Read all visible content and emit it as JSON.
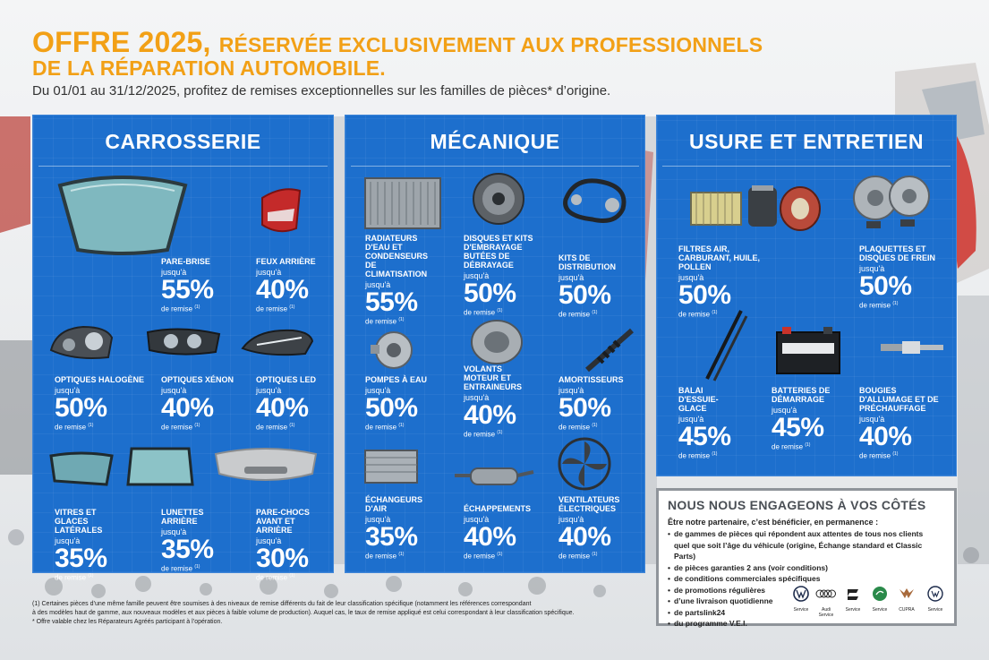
{
  "header": {
    "title_big": "OFFRE 2025,",
    "title_rest": "RÉSERVÉE EXCLUSIVEMENT AUX PROFESSIONNELS",
    "title_line2": "DE LA RÉPARATION AUTOMOBILE.",
    "subtitle": "Du 01/01 au 31/12/2025, profitez de remises exceptionnelles sur les familles de pièces* d’origine."
  },
  "labels": {
    "upto": "jusqu'à",
    "remise": "de remise",
    "note_mark": "(1)"
  },
  "panels": {
    "carrosserie": {
      "title": "CARROSSERIE",
      "items": [
        {
          "name": "PARE-BRISE",
          "pct": "55%"
        },
        {
          "name": "FEUX ARRIÈRE",
          "pct": "40%"
        },
        {
          "name": "OPTIQUES HALOGÈNE",
          "pct": "50%"
        },
        {
          "name": "OPTIQUES XÉNON",
          "pct": "40%"
        },
        {
          "name": "OPTIQUES LED",
          "pct": "40%"
        },
        {
          "name": "VITRES ET GLACES LATÉRALES",
          "pct": "35%"
        },
        {
          "name": "LUNETTES ARRIÈRE",
          "pct": "35%"
        },
        {
          "name": "PARE-CHOCS AVANT ET ARRIÈRE",
          "pct": "30%"
        }
      ]
    },
    "mecanique": {
      "title": "MÉCANIQUE",
      "items": [
        {
          "name": "RADIATEURS D'EAU ET CONDENSEURS DE CLIMATISATION",
          "pct": "55%"
        },
        {
          "name": "DISQUES ET KITS D'EMBRAYAGE BUTÉES DE DÉBRAYAGE",
          "pct": "50%"
        },
        {
          "name": "KITS DE DISTRIBUTION",
          "pct": "50%"
        },
        {
          "name": "POMPES À EAU",
          "pct": "50%"
        },
        {
          "name": "VOLANTS MOTEUR ET ENTRAINEURS",
          "pct": "40%"
        },
        {
          "name": "AMORTISSEURS",
          "pct": "50%"
        },
        {
          "name": "ÉCHANGEURS D'AIR",
          "pct": "35%"
        },
        {
          "name": "ÉCHAPPEMENTS",
          "pct": "40%"
        },
        {
          "name": "VENTILATEURS ÉLECTRIQUES",
          "pct": "40%"
        }
      ]
    },
    "usure": {
      "title": "USURE ET ENTRETIEN",
      "items": [
        {
          "name": "FILTRES AIR, CARBURANT, HUILE, POLLEN",
          "pct": "50%"
        },
        {
          "name": "PLAQUETTES ET DISQUES DE FREIN",
          "pct": "50%"
        },
        {
          "name": "BALAI D'ESSUIE-GLACE",
          "pct": "45%"
        },
        {
          "name": "BATTERIES DE DÉMARRAGE",
          "pct": "45%"
        },
        {
          "name": "BOUGIES D'ALLUMAGE ET DE PRÉCHAUFFAGE",
          "pct": "40%"
        }
      ]
    }
  },
  "engage": {
    "title": "NOUS NOUS ENGAGEONS À VOS CÔTÉS",
    "lead": "Être notre partenaire, c’est bénéficier, en permanence :",
    "bullets": [
      "de gammes de pièces qui répondent aux attentes de tous nos clients",
      "quel que soit l’âge du véhicule (origine, Échange standard et Classic Parts)",
      "de pièces garanties 2 ans (voir conditions)",
      "de conditions commerciales spécifiques",
      "de promotions régulières",
      "d’une livraison quotidienne",
      "de partslink24",
      "du programme V.E.I."
    ]
  },
  "brands": {
    "vw": "Service",
    "audi": "Audi Service",
    "seat": "Service",
    "skoda": "Service",
    "cupra": "CUPRA",
    "vwu": "Service"
  },
  "footnote": {
    "line1": "(1) Certaines pièces d’une même famille peuvent être soumises à des niveaux de remise différents du fait de leur classification spécifique (notamment les références correspondant",
    "line2": "à des modèles haut de gamme, aux nouveaux modèles et aux pièces à faible volume de production). Auquel cas, le taux de remise appliqué est celui correspondant à leur classification spécifique.",
    "line3": "* Offre valable chez les Réparateurs Agréés participant à l’opération."
  },
  "colors": {
    "accent": "#f2a016",
    "panel": "#1d6fcd"
  }
}
